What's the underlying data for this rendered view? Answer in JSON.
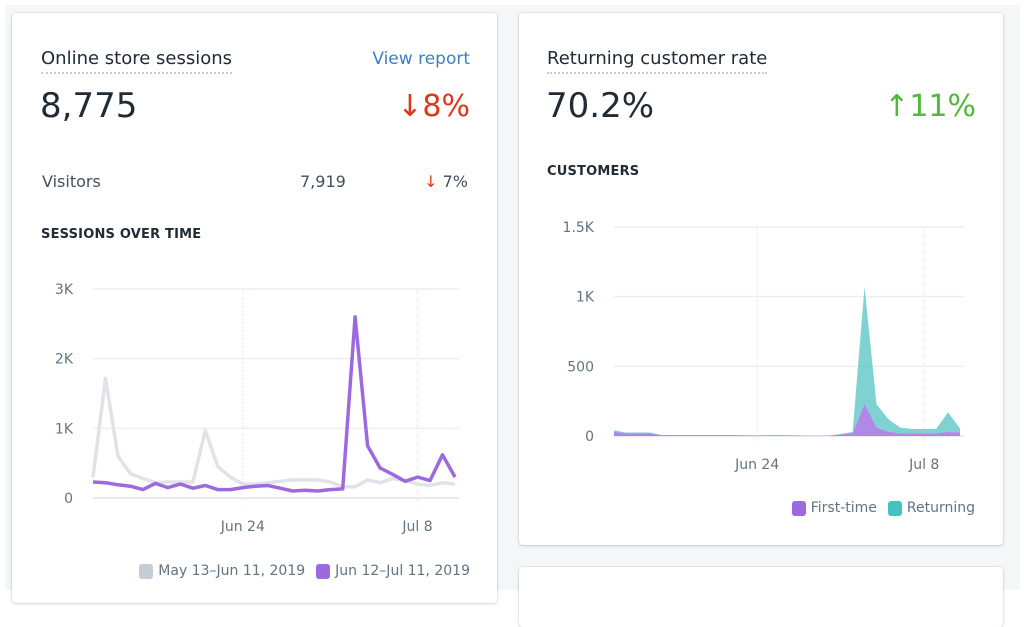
{
  "sessions_card": {
    "title": "Online store sessions",
    "view_report": "View report",
    "total": "8,775",
    "change": "8%",
    "change_direction": "down",
    "visitors_label": "Visitors",
    "visitors_value": "7,919",
    "visitors_change": "7%",
    "chart_title": "SESSIONS OVER TIME"
  },
  "returning_card": {
    "title": "Returning customer rate",
    "total": "70.2%",
    "change": "11%",
    "change_direction": "up",
    "chart_title": "CUSTOMERS"
  },
  "colors": {
    "down": "#de3618",
    "up": "#50b83c",
    "purple": "#9c6ade",
    "gray": "#dfe3e8",
    "teal": "#47c1bf",
    "link": "#3f7fbf"
  },
  "chart_data": [
    {
      "type": "line",
      "x_tick_labels": [
        "Jun 24",
        "Jul 8"
      ],
      "x_ticks_day_index": [
        12,
        26
      ],
      "y_tick_labels": [
        "0",
        "1K",
        "2K",
        "3K"
      ],
      "y_ticks": [
        0,
        1000,
        2000,
        3000
      ],
      "ylim": [
        0,
        3000
      ],
      "grid": true,
      "legend_placement": "bottom-right",
      "series": [
        {
          "name": "May 13–Jun 11, 2019",
          "color": "#dfe3e8",
          "values": [
            300,
            1720,
            600,
            350,
            280,
            220,
            230,
            230,
            230,
            970,
            450,
            300,
            200,
            200,
            220,
            240,
            260,
            260,
            260,
            230,
            160,
            160,
            260,
            220,
            280,
            250,
            200,
            180,
            220,
            200
          ]
        },
        {
          "name": "Jun 12–Jul 11, 2019",
          "color": "#9c6ade",
          "values": [
            230,
            220,
            190,
            170,
            120,
            210,
            150,
            200,
            140,
            180,
            120,
            120,
            150,
            170,
            180,
            140,
            100,
            110,
            100,
            120,
            130,
            2600,
            750,
            430,
            340,
            240,
            300,
            250,
            620,
            300
          ]
        }
      ]
    },
    {
      "type": "area",
      "stacked": true,
      "x_tick_labels": [
        "Jun 24",
        "Jul 8"
      ],
      "x_ticks_day_index": [
        12,
        26
      ],
      "y_tick_labels": [
        "0",
        "500",
        "1K",
        "1.5K"
      ],
      "y_ticks": [
        0,
        500,
        1000,
        1500
      ],
      "ylim": [
        0,
        1500
      ],
      "grid": true,
      "legend_placement": "bottom-right",
      "series": [
        {
          "name": "First-time",
          "color": "#9c6ade",
          "values": [
            30,
            20,
            20,
            20,
            5,
            5,
            5,
            5,
            5,
            5,
            5,
            3,
            3,
            3,
            3,
            3,
            2,
            2,
            2,
            10,
            20,
            230,
            60,
            30,
            20,
            20,
            20,
            20,
            30,
            25
          ]
        },
        {
          "name": "Returning",
          "color": "#47c1bf",
          "values": [
            10,
            5,
            5,
            5,
            2,
            2,
            2,
            2,
            2,
            2,
            2,
            2,
            2,
            3,
            3,
            2,
            1,
            1,
            1,
            5,
            10,
            840,
            170,
            90,
            40,
            30,
            30,
            30,
            140,
            30
          ]
        }
      ]
    }
  ]
}
